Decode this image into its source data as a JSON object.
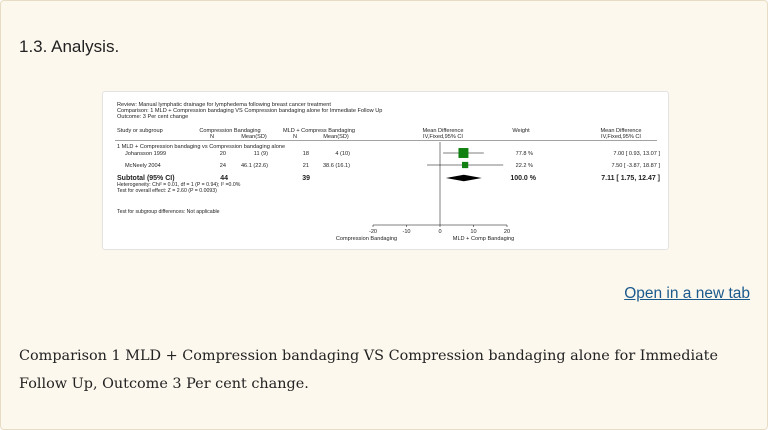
{
  "heading": "1.3. Analysis.",
  "open_link": "Open in a new tab",
  "caption": "Comparison 1 MLD + Compression bandaging VS Compression bandaging alone for Immediate Follow Up, Outcome 3 Per cent change.",
  "colors": {
    "accent_link": "#1b5a8c",
    "square": "#108010",
    "diamond": "#000000"
  },
  "chart_data": {
    "type": "forest",
    "review": "Review:  Manual lymphatic drainage for lymphedema following breast cancer treatment",
    "comparison": "Comparison:  1 MLD + Compression bandaging VS Compression bandaging alone for Immediate Follow Up",
    "outcome": "Outcome:  3 Per cent change",
    "headers": {
      "study": "Study or subgroup",
      "group1": "Compression Bandaging",
      "group2": "MLD + Compress Bandaging",
      "n": "N",
      "mean": "Mean(SD)",
      "md": "Mean Difference",
      "md_method": "IV,Fixed,95% CI",
      "weight": "Weight"
    },
    "subgroup_title": "1 MLD + Compression bandaging vs Compression bandaging alone",
    "studies": [
      {
        "name": "Johansson 1999",
        "n1": "20",
        "mean1": "11 (9)",
        "n2": "18",
        "mean2": "4 (10)",
        "weight": "77.8 %",
        "ci_text": "7.00 [ 0.93, 13.07 ]",
        "md": 7.0,
        "lo": 0.93,
        "hi": 13.07,
        "w": 77.8
      },
      {
        "name": "McNeely 2004",
        "n1": "24",
        "mean1": "46.1 (22.6)",
        "n2": "21",
        "mean2": "38.6 (16.1)",
        "weight": "22.2 %",
        "ci_text": "7.50 [ -3.87, 18.87 ]",
        "md": 7.5,
        "lo": -3.87,
        "hi": 18.87,
        "w": 22.2
      }
    ],
    "subtotal": {
      "label": "Subtotal (95% CI)",
      "n1": "44",
      "n2": "39",
      "weight": "100.0 %",
      "ci_text": "7.11 [ 1.75, 12.47 ]",
      "md": 7.11,
      "lo": 1.75,
      "hi": 12.47
    },
    "heterogeneity": "Heterogeneity: Chi² = 0.01, df = 1 (P = 0.94); I² =0.0%",
    "overall_effect": "Test for overall effect: Z = 2.60 (P = 0.0093)",
    "subgroup_diff": "Test for subgroup differences: Not applicable",
    "axis": {
      "min": -20,
      "max": 20,
      "ticks": [
        -20,
        -10,
        0,
        10,
        20
      ],
      "tick_labels": [
        "-20",
        "-10",
        "0",
        "10",
        "20"
      ]
    },
    "favours_left": "Compression Bandaging",
    "favours_right": "MLD + Comp Bandaging"
  }
}
